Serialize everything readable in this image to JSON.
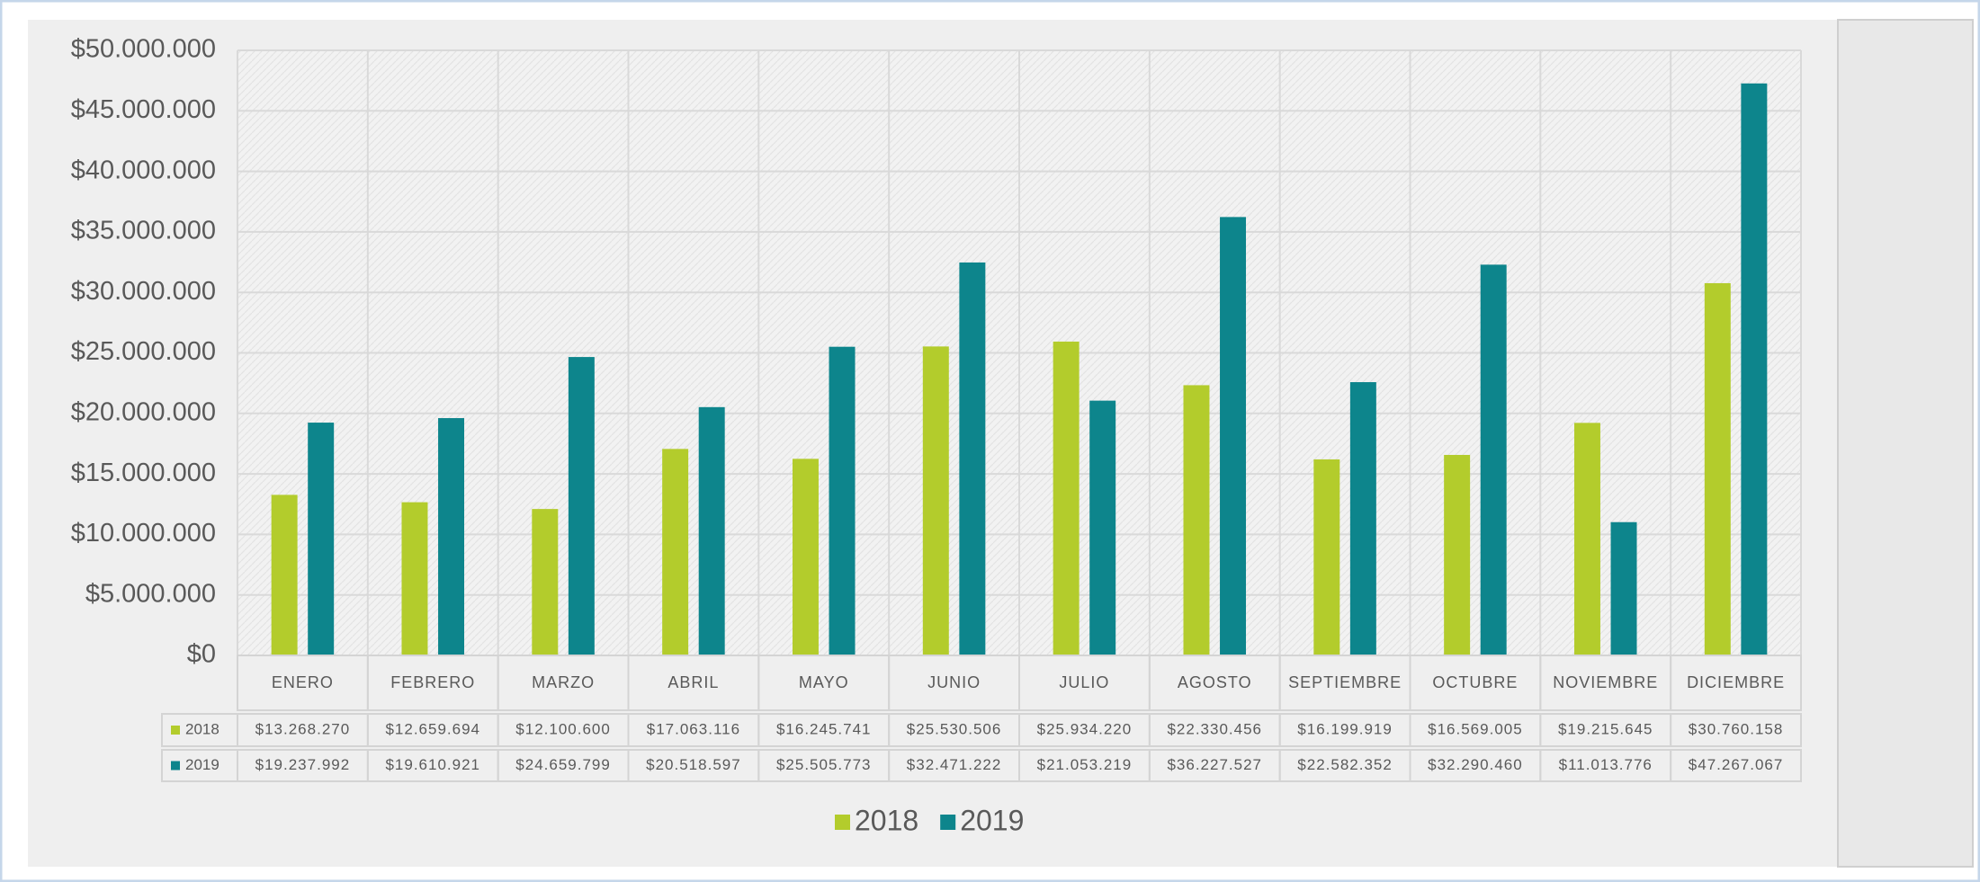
{
  "chart_data": {
    "type": "bar",
    "categories": [
      "ENERO",
      "FEBRERO",
      "MARZO",
      "ABRIL",
      "MAYO",
      "JUNIO",
      "JULIO",
      "AGOSTO",
      "SEPTIEMBRE",
      "OCTUBRE",
      "NOVIEMBRE",
      "DICIEMBRE"
    ],
    "series": [
      {
        "name": "2018",
        "color": "#b3cc2c",
        "values": [
          13268270,
          12659694,
          12100600,
          17063116,
          16245741,
          25530506,
          25934220,
          22330456,
          16199919,
          16569005,
          19215645,
          30760158
        ],
        "value_labels": [
          "$13.268.270",
          "$12.659.694",
          "$12.100.600",
          "$17.063.116",
          "$16.245.741",
          "$25.530.506",
          "$25.934.220",
          "$22.330.456",
          "$16.199.919",
          "$16.569.005",
          "$19.215.645",
          "$30.760.158"
        ]
      },
      {
        "name": "2019",
        "color": "#0d858c",
        "values": [
          19237992,
          19610921,
          24659799,
          20518597,
          25505773,
          32471222,
          21053219,
          36227527,
          22582352,
          32290460,
          11013776,
          47267067
        ],
        "value_labels": [
          "$19.237.992",
          "$19.610.921",
          "$24.659.799",
          "$20.518.597",
          "$25.505.773",
          "$32.471.222",
          "$21.053.219",
          "$36.227.527",
          "$22.582.352",
          "$32.290.460",
          "$11.013.776",
          "$47.267.067"
        ]
      }
    ],
    "ylim": [
      0,
      50000000
    ],
    "yticks": [
      {
        "value": 0,
        "label": "$0"
      },
      {
        "value": 5000000,
        "label": "$5.000.000"
      },
      {
        "value": 10000000,
        "label": "$10.000.000"
      },
      {
        "value": 15000000,
        "label": "$15.000.000"
      },
      {
        "value": 20000000,
        "label": "$20.000.000"
      },
      {
        "value": 25000000,
        "label": "$25.000.000"
      },
      {
        "value": 30000000,
        "label": "$30.000.000"
      },
      {
        "value": 35000000,
        "label": "$35.000.000"
      },
      {
        "value": 40000000,
        "label": "$40.000.000"
      },
      {
        "value": 45000000,
        "label": "$45.000.000"
      },
      {
        "value": 50000000,
        "label": "$50.000.000"
      }
    ],
    "grid": true,
    "legend": "bottom"
  }
}
